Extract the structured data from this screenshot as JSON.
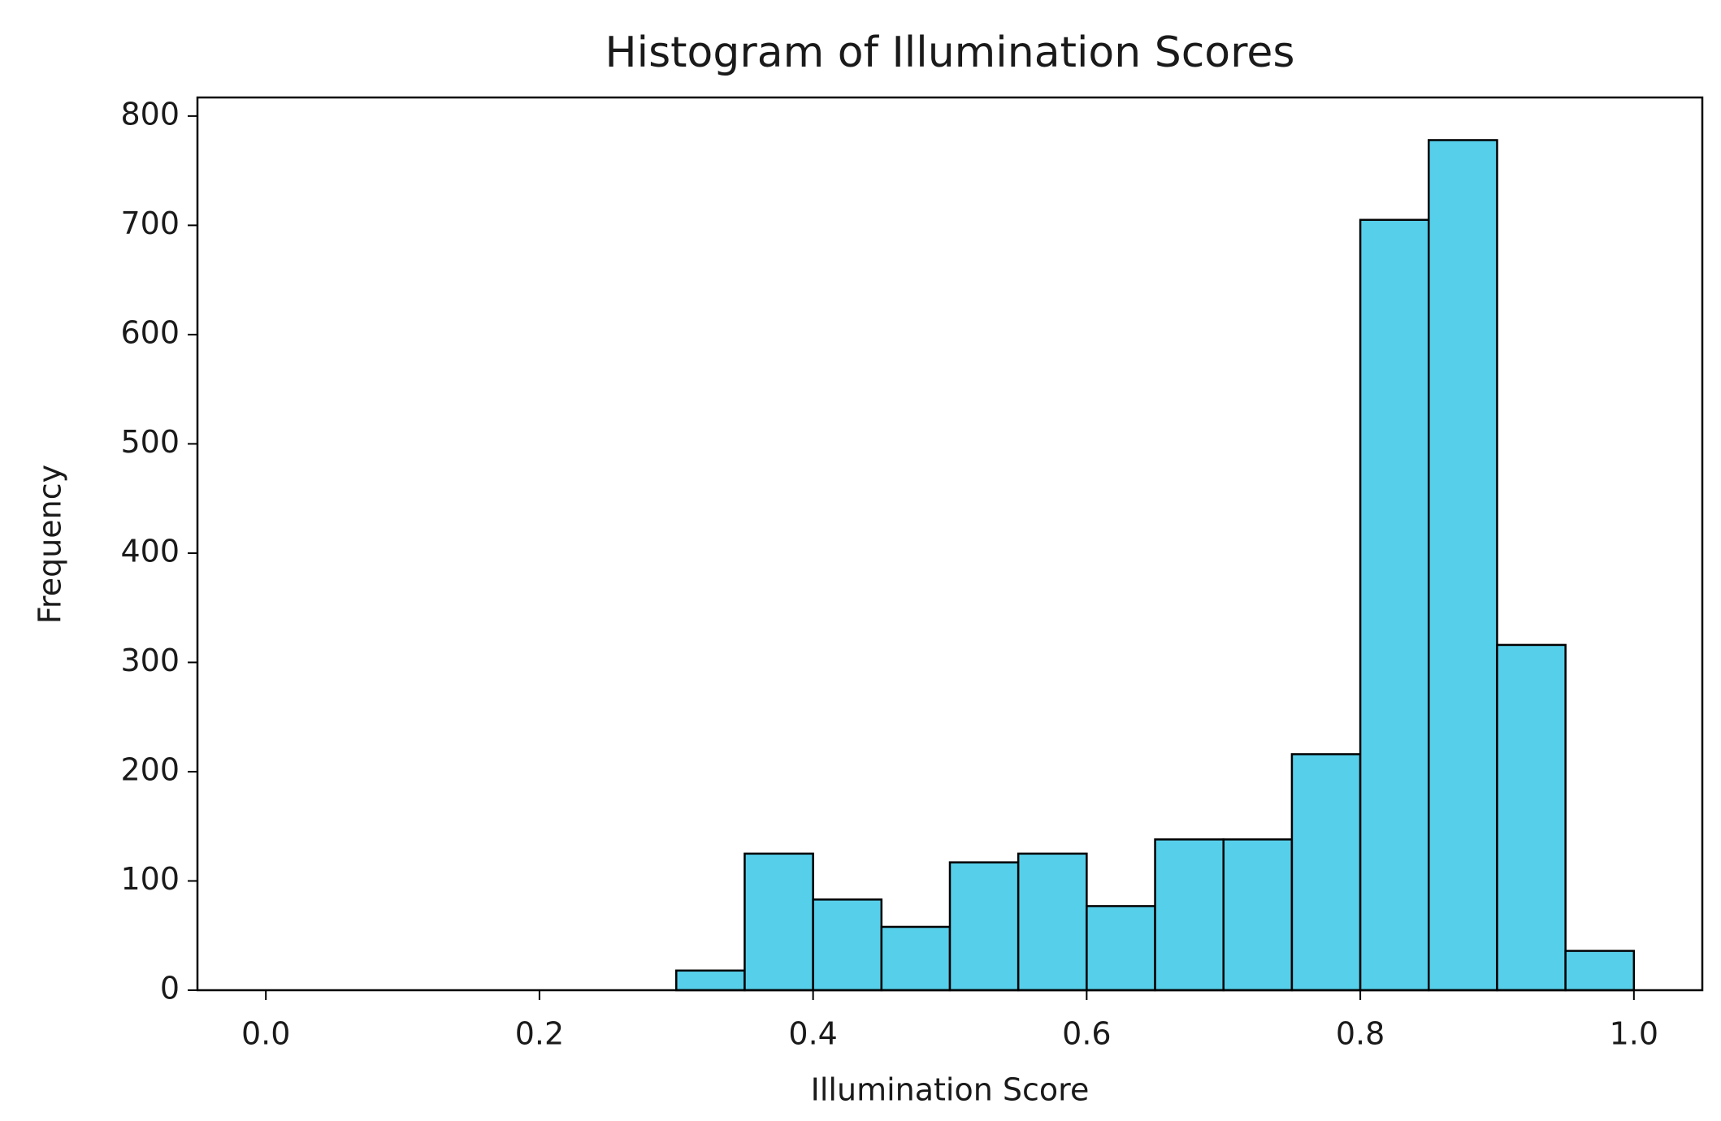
{
  "chart_data": {
    "type": "histogram",
    "title": "Histogram of Illumination Scores",
    "x_label": "Illumination Score",
    "y_label": "Frequency",
    "bins": [
      0.0,
      0.05,
      0.1,
      0.15,
      0.2,
      0.25,
      0.3,
      0.35,
      0.4,
      0.45,
      0.5,
      0.55,
      0.6,
      0.65,
      0.7,
      0.75,
      0.8,
      0.85,
      0.9,
      0.95,
      1.0
    ],
    "counts": [
      0,
      0,
      0,
      0,
      0,
      0,
      18,
      125,
      83,
      58,
      117,
      125,
      77,
      138,
      138,
      216,
      705,
      778,
      316,
      36
    ],
    "color": "#56cfea",
    "edgecolor": "#000000",
    "xlim": [
      -0.05,
      1.05
    ],
    "ylim": [
      0,
      817
    ],
    "xticks": [
      {
        "value": 0.0,
        "label": "0.0"
      },
      0.2,
      0.4,
      0.6,
      0.8,
      {
        "value": 1.0,
        "label": "1.0"
      }
    ],
    "yticks": [
      0,
      100,
      200,
      300,
      400,
      500,
      600,
      700,
      800
    ]
  }
}
